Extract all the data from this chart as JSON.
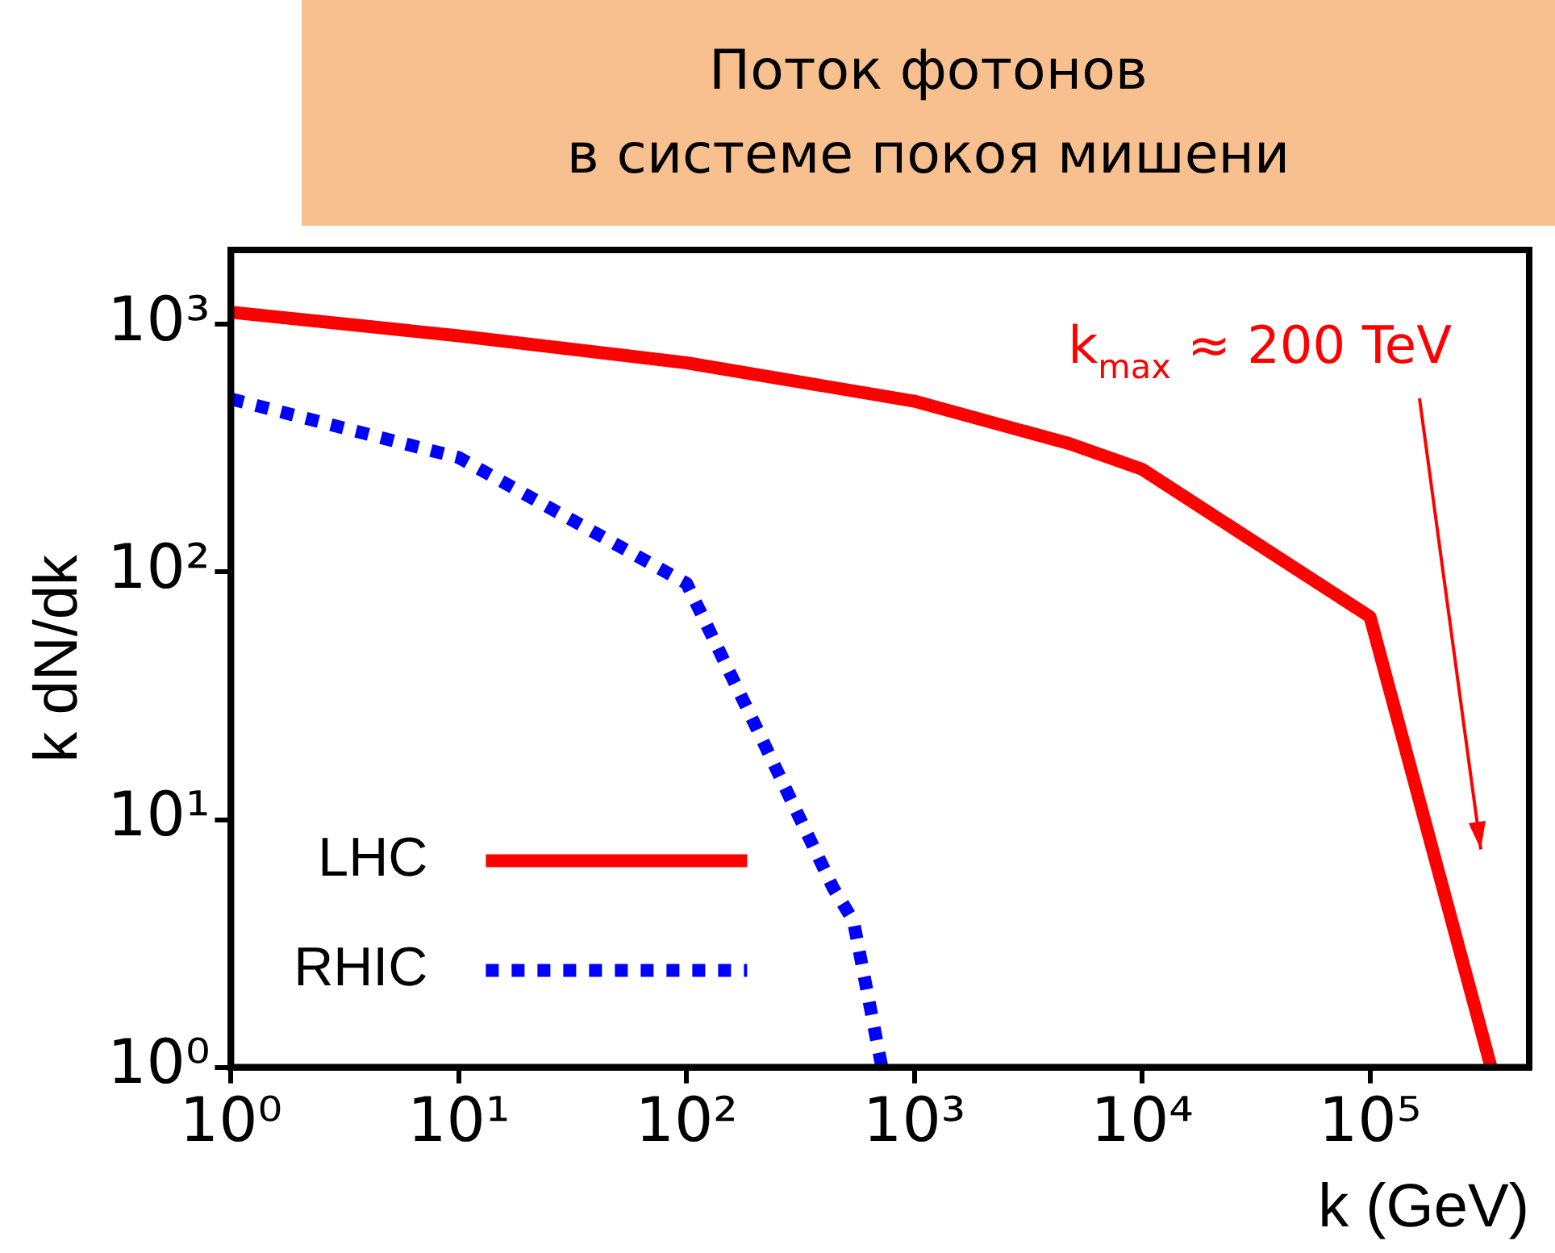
{
  "chart_data": {
    "type": "line",
    "title": "Поток фотонов\nв системе покоя мишени",
    "xlabel": "k (GeV)",
    "ylabel": "k dN/dk",
    "log": "xy",
    "grid": false,
    "legend": "bottom left",
    "marker": "none",
    "xlim": [
      1,
      500000
    ],
    "ylim": [
      1,
      2000
    ],
    "xticks": [
      {
        "value": 1,
        "label": "10⁰"
      },
      {
        "value": 10,
        "label": "10¹"
      },
      {
        "value": 100,
        "label": "10²"
      },
      {
        "value": 1000,
        "label": "10³"
      },
      {
        "value": 10000,
        "label": "10⁴"
      },
      {
        "value": 100000,
        "label": "10⁵"
      }
    ],
    "yticks": [
      {
        "value": 1,
        "label": "10⁰"
      },
      {
        "value": 10,
        "label": "10¹"
      },
      {
        "value": 100,
        "label": "10²"
      },
      {
        "value": 1000,
        "label": "10³"
      }
    ],
    "series": [
      {
        "name": "LHC",
        "color": "#ff0000",
        "line_style": "solid",
        "x": [
          1,
          10,
          100,
          1000,
          4800,
          10000,
          100000,
          340000
        ],
        "values": [
          1120,
          900,
          700,
          490,
          330,
          260,
          66,
          1
        ]
      },
      {
        "name": "RHIC",
        "color": "#0000ff",
        "line_style": "dotted",
        "x": [
          1,
          10,
          100,
          205,
          440,
          540,
          720
        ],
        "values": [
          500,
          290,
          90,
          23,
          5.3,
          3.9,
          1
        ]
      }
    ],
    "annotations": [
      "k$_{max}$ ≈ 200 TeV"
    ]
  }
}
